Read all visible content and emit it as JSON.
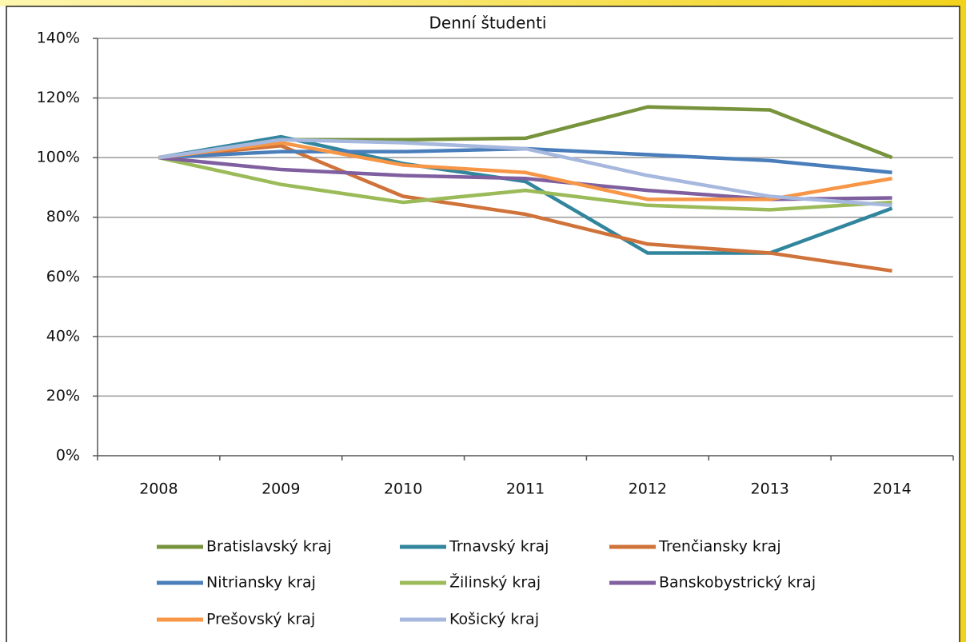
{
  "chart_data": {
    "type": "line",
    "title": "Denní študenti",
    "categories": [
      "2008",
      "2009",
      "2010",
      "2011",
      "2012",
      "2013",
      "2014"
    ],
    "series": [
      {
        "name": "Bratislavský kraj",
        "color": "#77933c",
        "values": [
          100,
          106,
          106,
          106.5,
          117,
          116,
          100
        ]
      },
      {
        "name": "Trnavský kraj",
        "color": "#31859c",
        "values": [
          100,
          107,
          98,
          92,
          68,
          68,
          83
        ]
      },
      {
        "name": "Trenčiansky kraj",
        "color": "#d0733a",
        "values": [
          100,
          104,
          87,
          81,
          71,
          68,
          62
        ]
      },
      {
        "name": "Nitriansky kraj",
        "color": "#4a7ebb",
        "values": [
          100,
          102,
          102,
          103,
          101,
          99,
          95
        ]
      },
      {
        "name": "Žilinský kraj",
        "color": "#9bbb59",
        "values": [
          100,
          91,
          85,
          89,
          84,
          82.5,
          85
        ]
      },
      {
        "name": "Banskobystrický kraj",
        "color": "#7f5f9f",
        "values": [
          100,
          96,
          94,
          93,
          89,
          86,
          86.5
        ]
      },
      {
        "name": "Prešovský kraj",
        "color": "#f79646",
        "values": [
          100,
          105,
          97.5,
          95,
          86,
          86,
          93
        ]
      },
      {
        "name": "Košický kraj",
        "color": "#a6b8de",
        "values": [
          100,
          106,
          105,
          103,
          94,
          87,
          84
        ]
      }
    ],
    "ylim": [
      0,
      140
    ],
    "yticks": [
      {
        "value": 0,
        "label": "0%"
      },
      {
        "value": 20,
        "label": "20%"
      },
      {
        "value": 40,
        "label": "40%"
      },
      {
        "value": 60,
        "label": "60%"
      },
      {
        "value": 80,
        "label": "80%"
      },
      {
        "value": 100,
        "label": "100%"
      },
      {
        "value": 120,
        "label": "120%"
      },
      {
        "value": 140,
        "label": "140%"
      }
    ],
    "grid": true
  }
}
